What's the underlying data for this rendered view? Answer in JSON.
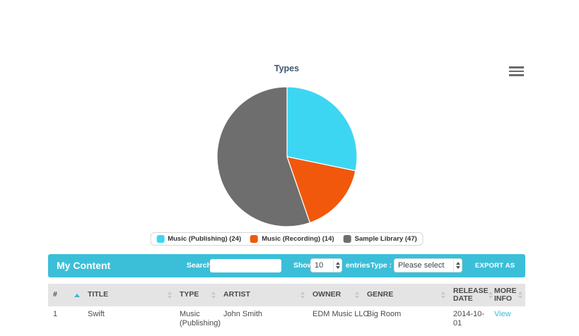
{
  "chart": {
    "title": "Types",
    "menu_icon": "hamburger-icon"
  },
  "chart_data": {
    "type": "pie",
    "title": "Types",
    "legend_position": "bottom",
    "start_angle_deg": 0,
    "series": [
      {
        "name": "Types",
        "slices": [
          {
            "label": "Music (Publishing)",
            "value": 24,
            "color": "#3dd6f2"
          },
          {
            "label": "Music (Recording)",
            "value": 14,
            "color": "#f1580c"
          },
          {
            "label": "Sample Library",
            "value": 47,
            "color": "#6e6e6e"
          }
        ]
      }
    ]
  },
  "content_bar": {
    "title": "My Content",
    "search_label": "Search:",
    "search_value": "",
    "show_label": "Show",
    "show_value": "10",
    "entries_label": "entries",
    "type_label": "Type :",
    "type_value": "Please select",
    "export_label": "EXPORT AS CSV"
  },
  "table": {
    "columns": [
      {
        "key": "num",
        "label": "#",
        "width": 49,
        "sort": "asc",
        "wrap": false
      },
      {
        "key": "title",
        "label": "TITLE",
        "width": 130,
        "sort": "none",
        "wrap": false
      },
      {
        "key": "type",
        "label": "TYPE",
        "width": 62,
        "sort": "none",
        "wrap": true
      },
      {
        "key": "artist",
        "label": "ARTIST",
        "width": 126,
        "sort": "none",
        "wrap": false
      },
      {
        "key": "owner",
        "label": "OWNER",
        "width": 77,
        "sort": "none",
        "wrap": false
      },
      {
        "key": "genre",
        "label": "GENRE",
        "width": 122,
        "sort": "none",
        "wrap": false
      },
      {
        "key": "release_date",
        "label": "RELEASE DATE",
        "width": 58,
        "sort": "none",
        "wrap": true
      },
      {
        "key": "more_info",
        "label": "MORE INFO",
        "width": 51,
        "sort": "none",
        "wrap": false
      }
    ],
    "rows": [
      {
        "num": "1",
        "title": "Swift",
        "type": "Music (Publishing)",
        "artist": "John Smith",
        "owner": "EDM Music LLC",
        "genre": "Big Room",
        "release_date": "2014-10-01",
        "more_info": "View"
      }
    ]
  },
  "colors": {
    "accent_cyan": "#3bbfd9",
    "pie_cyan": "#3dd6f2",
    "pie_orange": "#f1580c",
    "pie_gray": "#6e6e6e",
    "link": "#3bbcd9",
    "chart_title": "#3e576f",
    "header_bg": "#e4e4e4"
  }
}
